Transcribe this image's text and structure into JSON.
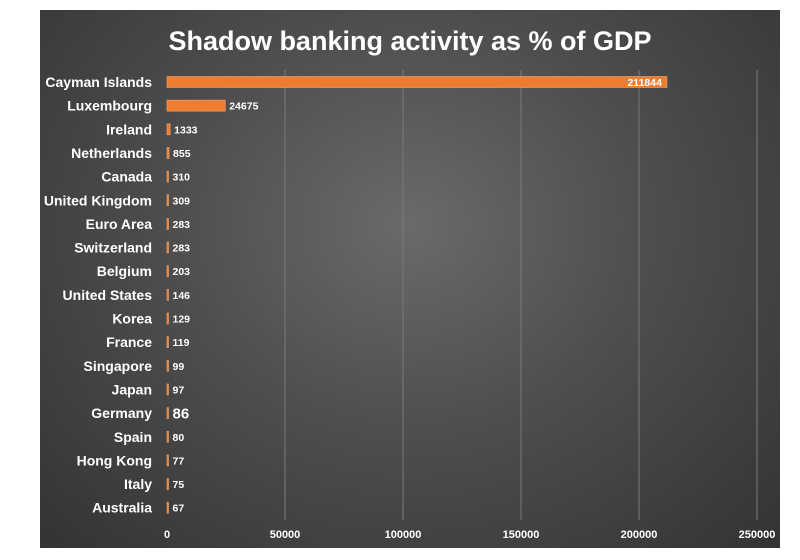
{
  "chart_data": {
    "type": "bar",
    "orientation": "horizontal",
    "title": "Shadow banking activity as % of GDP",
    "categories": [
      "Cayman Islands",
      "Luxembourg",
      "Ireland",
      "Netherlands",
      "Canada",
      "United Kingdom",
      "Euro Area",
      "Switzerland",
      "Belgium",
      "United States",
      "Korea",
      "France",
      "Singapore",
      "Japan",
      "Germany",
      "Spain",
      "Hong Kong",
      "Italy",
      "Australia"
    ],
    "values": [
      211844,
      24675,
      1333,
      855,
      310,
      309,
      283,
      283,
      203,
      146,
      129,
      119,
      99,
      97,
      86,
      80,
      77,
      75,
      67
    ],
    "value_labels": [
      "211844",
      "24675",
      "1333",
      "855",
      "310",
      "309",
      "283",
      "283",
      "203",
      "146",
      "129",
      "119",
      "99",
      "97",
      "86",
      "80",
      "77",
      "75",
      "67"
    ],
    "highlight": {
      "category": "Germany",
      "label_color": "#e0332a"
    },
    "xlim": [
      0,
      250000
    ],
    "x_ticks": [
      0,
      50000,
      100000,
      150000,
      200000,
      250000
    ],
    "x_tick_labels": [
      "0",
      "50000",
      "100000",
      "150000",
      "200000",
      "250000"
    ],
    "xlabel": "",
    "ylabel": "",
    "grid": "vertical",
    "legend": "none",
    "colors": {
      "bar": "#ed7d31",
      "bar_edge": "#f4a66a",
      "label": "#ffffff",
      "highlight": "#e0332a"
    }
  }
}
